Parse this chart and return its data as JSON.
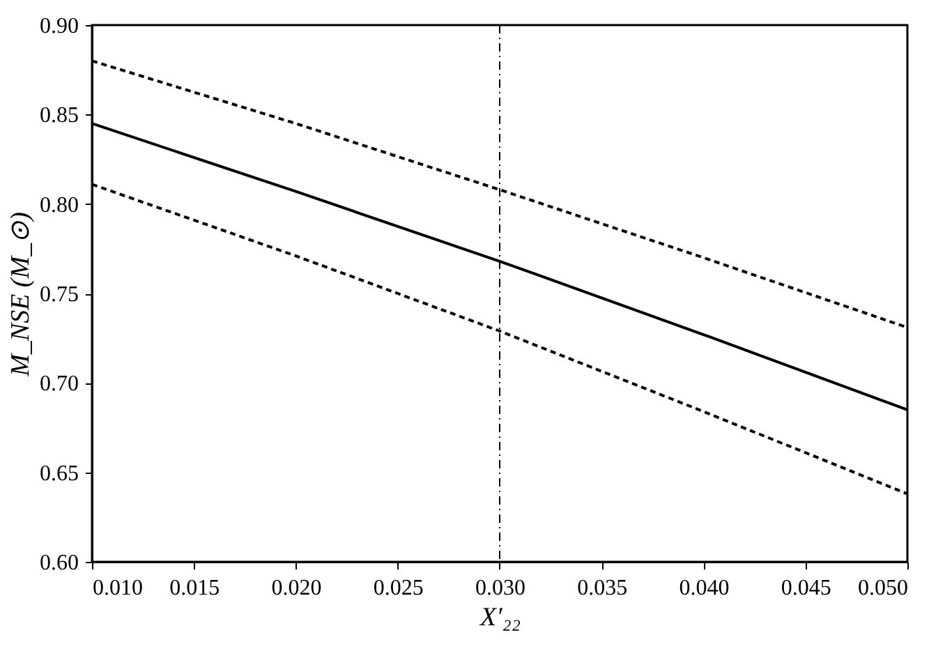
{
  "chart_data": {
    "type": "line",
    "xlabel": "X′₂₂",
    "ylabel": "M_NSE (M_⊙)",
    "x": [
      0.01,
      0.02,
      0.03,
      0.04,
      0.05
    ],
    "series": [
      {
        "color": "#000000",
        "line_style": "dashed",
        "values": [
          0.88,
          0.845,
          0.808,
          0.77,
          0.731
        ]
      },
      {
        "color": "#000000",
        "line_style": "solid",
        "values": [
          0.845,
          0.807,
          0.768,
          0.727,
          0.685
        ]
      },
      {
        "color": "#000000",
        "line_style": "dashed",
        "values": [
          0.811,
          0.771,
          0.729,
          0.684,
          0.638
        ]
      }
    ],
    "xlim": [
      0.01,
      0.05
    ],
    "xticks": [
      {
        "value": 0.01,
        "label": "0.010"
      },
      {
        "value": 0.015,
        "label": "0.015"
      },
      {
        "value": 0.02,
        "label": "0.020"
      },
      {
        "value": 0.025,
        "label": "0.025"
      },
      {
        "value": 0.03,
        "label": "0.030"
      },
      {
        "value": 0.035,
        "label": "0.035"
      },
      {
        "value": 0.04,
        "label": "0.040"
      },
      {
        "value": 0.045,
        "label": "0.045"
      },
      {
        "value": 0.05,
        "label": "0.050"
      }
    ],
    "ylim": [
      0.6,
      0.9
    ],
    "yticks": [
      {
        "value": 0.6,
        "label": "0.60"
      },
      {
        "value": 0.65,
        "label": "0.65"
      },
      {
        "value": 0.7,
        "label": "0.70"
      },
      {
        "value": 0.75,
        "label": "0.75"
      },
      {
        "value": 0.8,
        "label": "0.80"
      },
      {
        "value": 0.85,
        "label": "0.85"
      },
      {
        "value": 0.9,
        "label": "0.90"
      }
    ],
    "ref_lines": [
      {
        "axis": "x",
        "value": 0.03,
        "line_style": "dashdot",
        "color": "#000000"
      }
    ],
    "grid": false
  }
}
